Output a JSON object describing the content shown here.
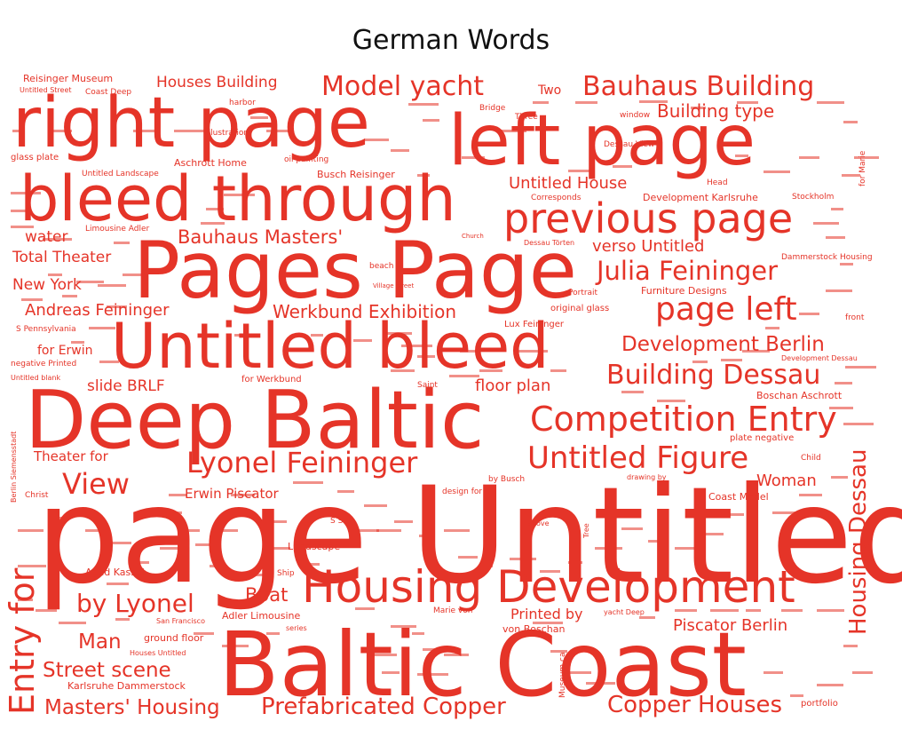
{
  "chart_data": {
    "type": "wordcloud",
    "title": "German Words",
    "color": "#e53428",
    "words": [
      {
        "text": "page Untitled",
        "weight": 100
      },
      {
        "text": "Baltic Coast",
        "weight": 94
      },
      {
        "text": "Deep Baltic",
        "weight": 82
      },
      {
        "text": "Pages Page",
        "weight": 80
      },
      {
        "text": "right page",
        "weight": 72
      },
      {
        "text": "left page",
        "weight": 72
      },
      {
        "text": "bleed through",
        "weight": 64
      },
      {
        "text": "Untitled bleed",
        "weight": 64
      },
      {
        "text": "Housing Development",
        "weight": 48
      },
      {
        "text": "previous page",
        "weight": 44
      },
      {
        "text": "Competition Entry",
        "weight": 36
      },
      {
        "text": "Entry for",
        "weight": 34
      },
      {
        "text": "page left",
        "weight": 34
      },
      {
        "text": "Untitled Figure",
        "weight": 32
      },
      {
        "text": "Lyonel Feininger",
        "weight": 30
      },
      {
        "text": "View",
        "weight": 30
      },
      {
        "text": "Model yacht",
        "weight": 28
      },
      {
        "text": "Bauhaus Building",
        "weight": 28
      },
      {
        "text": "Building Dessau",
        "weight": 28
      },
      {
        "text": "Julia Feininger",
        "weight": 27
      },
      {
        "text": "by Lyonel",
        "weight": 26
      },
      {
        "text": "Housing Dessau",
        "weight": 26
      },
      {
        "text": "Prefabricated Copper",
        "weight": 24
      },
      {
        "text": "Copper Houses",
        "weight": 24
      },
      {
        "text": "Development Berlin",
        "weight": 22
      },
      {
        "text": "Masters' Housing",
        "weight": 22
      },
      {
        "text": "Street scene",
        "weight": 22
      },
      {
        "text": "Man",
        "weight": 22
      },
      {
        "text": "Bauhaus Masters'",
        "weight": 20
      },
      {
        "text": "Boat",
        "weight": 20
      },
      {
        "text": "Building type",
        "weight": 18
      },
      {
        "text": "Werkbund Exhibition",
        "weight": 18
      },
      {
        "text": "Untitled House",
        "weight": 17
      },
      {
        "text": "verso Untitled",
        "weight": 17
      },
      {
        "text": "Andreas Feininger",
        "weight": 17
      },
      {
        "text": "Piscator Berlin",
        "weight": 17
      },
      {
        "text": "Woman",
        "weight": 17
      },
      {
        "text": "floor plan",
        "weight": 17
      },
      {
        "text": "Houses Building",
        "weight": 16
      },
      {
        "text": "water",
        "weight": 16
      },
      {
        "text": "Total Theater",
        "weight": 16
      },
      {
        "text": "New York",
        "weight": 16
      },
      {
        "text": "slide BRLF",
        "weight": 16
      },
      {
        "text": "Printed by",
        "weight": 15
      },
      {
        "text": "Theater for",
        "weight": 14
      },
      {
        "text": "Erwin Piscator",
        "weight": 14
      },
      {
        "text": "for Erwin",
        "weight": 13
      },
      {
        "text": "Two",
        "weight": 13
      },
      {
        "text": "Reisinger Museum",
        "weight": 10
      },
      {
        "text": "Aschrott Home",
        "weight": 10
      },
      {
        "text": "Busch Reisinger",
        "weight": 10
      },
      {
        "text": "Development Karlsruhe",
        "weight": 10
      },
      {
        "text": "Furniture Designs",
        "weight": 10
      },
      {
        "text": "Boschan Aschrott",
        "weight": 10
      },
      {
        "text": "Adler Limousine",
        "weight": 10
      },
      {
        "text": "Landscape",
        "weight": 10
      },
      {
        "text": "Aged Kassel",
        "weight": 10
      },
      {
        "text": "ground floor",
        "weight": 10
      },
      {
        "text": "Karlsruhe Dammerstock",
        "weight": 10
      },
      {
        "text": "von Boschan",
        "weight": 10
      },
      {
        "text": "Coast Model",
        "weight": 10
      },
      {
        "text": "glass plate",
        "weight": 9
      },
      {
        "text": "Lux Feininger",
        "weight": 9
      },
      {
        "text": "original glass",
        "weight": 9
      },
      {
        "text": "plate negative",
        "weight": 9
      },
      {
        "text": "for Werkbund",
        "weight": 9
      },
      {
        "text": "portfolio",
        "weight": 9
      },
      {
        "text": "Illustration",
        "weight": 8
      },
      {
        "text": "harbor",
        "weight": 8
      },
      {
        "text": "oil painting",
        "weight": 8
      },
      {
        "text": "Dessau View",
        "weight": 8
      },
      {
        "text": "Head",
        "weight": 8
      },
      {
        "text": "Corresponds",
        "weight": 8
      },
      {
        "text": "Bridge",
        "weight": 8
      },
      {
        "text": "Three",
        "weight": 8
      },
      {
        "text": "window",
        "weight": 8
      },
      {
        "text": "Limousine Adler",
        "weight": 8
      },
      {
        "text": "Untitled Landscape",
        "weight": 8
      },
      {
        "text": "Coast Deep",
        "weight": 8
      },
      {
        "text": "Untitled Street",
        "weight": 8
      },
      {
        "text": "beach",
        "weight": 8
      },
      {
        "text": "Portrait",
        "weight": 8
      },
      {
        "text": "Dammerstock Housing",
        "weight": 8
      },
      {
        "text": "Stockholm",
        "weight": 8
      },
      {
        "text": "S Pennsylvania",
        "weight": 8
      },
      {
        "text": "negative Printed",
        "weight": 8
      },
      {
        "text": "Untitled blank",
        "weight": 8
      },
      {
        "text": "Development Dessau",
        "weight": 8
      },
      {
        "text": "Saint",
        "weight": 8
      },
      {
        "text": "Child",
        "weight": 8
      },
      {
        "text": "for Marie",
        "weight": 8
      },
      {
        "text": "front",
        "weight": 8
      },
      {
        "text": "Christ",
        "weight": 8
      },
      {
        "text": "design for",
        "weight": 8
      },
      {
        "text": "drawing by",
        "weight": 8
      },
      {
        "text": "by Busch",
        "weight": 8
      },
      {
        "text": "Ship",
        "weight": 8
      },
      {
        "text": "S S",
        "weight": 8
      },
      {
        "text": "above",
        "weight": 8
      },
      {
        "text": "Tree",
        "weight": 8
      },
      {
        "text": "San Francisco",
        "weight": 8
      },
      {
        "text": "Houses Untitled",
        "weight": 8
      },
      {
        "text": "series",
        "weight": 8
      },
      {
        "text": "Marie von",
        "weight": 8
      },
      {
        "text": "yacht Deep",
        "weight": 8
      },
      {
        "text": "Museum ca",
        "weight": 8
      },
      {
        "text": "Berlin Siemensstadt",
        "weight": 8
      },
      {
        "text": "Dessau Törten",
        "weight": 8
      },
      {
        "text": "Village street",
        "weight": 8
      },
      {
        "text": "Church",
        "weight": 8
      }
    ]
  }
}
